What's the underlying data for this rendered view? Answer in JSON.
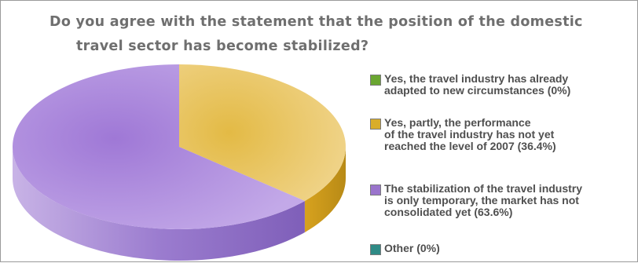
{
  "title": {
    "line1": "Do you agree with the statement that the position of the domestic",
    "line2": "travel sector has become stabilized?"
  },
  "chart_data": {
    "type": "pie",
    "style": "3d",
    "slices": [
      {
        "label": "Yes, the travel industry has already\nadapted to new circumstances (0%)",
        "value": 0,
        "color": "#6aa631"
      },
      {
        "label": "Yes, partly, the performance\nof the travel industry has not yet\nreached the level of 2007 (36.4%)",
        "value": 36.4,
        "color": "#d9ad2a"
      },
      {
        "label": "The stabilization of the travel industry\nis only temporary, the market has not\nconsolidated yet (63.6%)",
        "value": 63.6,
        "color": "#9a74cc"
      },
      {
        "label": "Other (0%)",
        "value": 0,
        "color": "#2f8b86"
      }
    ],
    "legend_position": "right"
  }
}
